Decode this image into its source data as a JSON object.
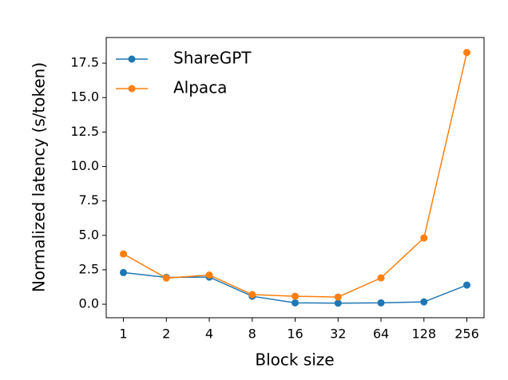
{
  "chart_data": {
    "type": "line",
    "xlabel": "Block size",
    "ylabel": "Normalized latency (s/token)",
    "categories": [
      "1",
      "2",
      "4",
      "8",
      "16",
      "32",
      "64",
      "128",
      "256"
    ],
    "series": [
      {
        "name": "ShareGPT",
        "color": "#1f77b4",
        "values": [
          2.3,
          1.95,
          1.97,
          0.58,
          0.1,
          0.08,
          0.1,
          0.17,
          1.39
        ]
      },
      {
        "name": "Alpaca",
        "color": "#ff7f0e",
        "values": [
          3.65,
          1.9,
          2.12,
          0.7,
          0.58,
          0.52,
          1.91,
          4.81,
          18.27
        ]
      }
    ],
    "ylim": [
      -0.98,
      19.36
    ],
    "yticks": [
      {
        "value": 0,
        "label": "0.0"
      },
      2.5,
      {
        "value": 5,
        "label": "5.0"
      },
      7.5,
      {
        "value": 10,
        "label": "10.0"
      },
      12.5,
      {
        "value": 15,
        "label": "15.0"
      },
      17.5
    ],
    "legend": "upper left"
  }
}
